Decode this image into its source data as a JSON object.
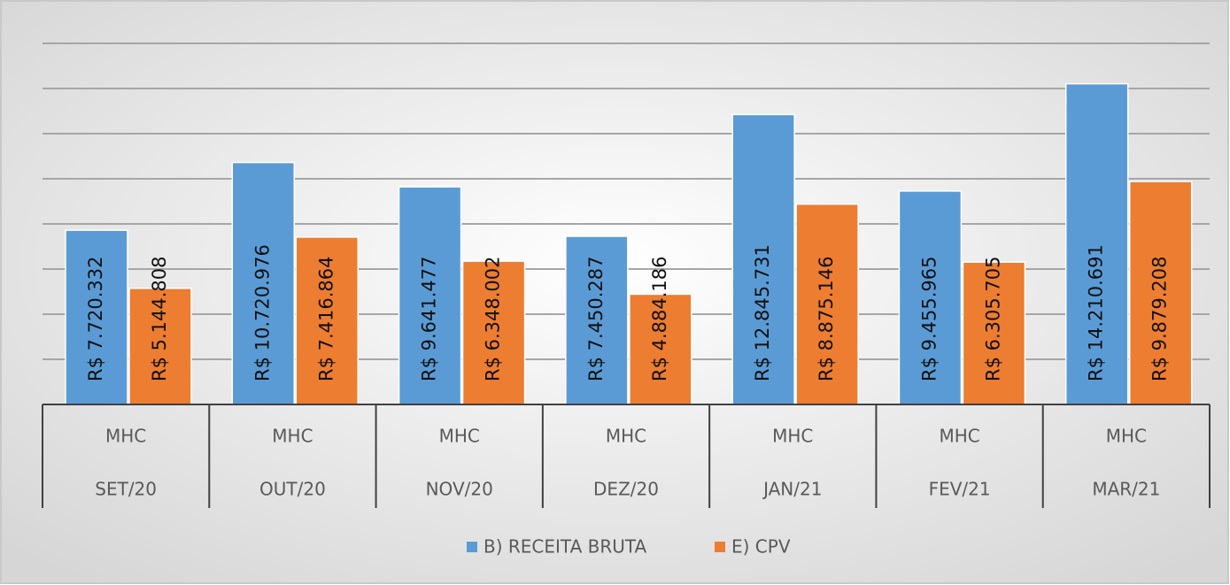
{
  "chart_data": {
    "type": "bar",
    "category_groups": [
      "MHC",
      "MHC",
      "MHC",
      "MHC",
      "MHC",
      "MHC",
      "MHC"
    ],
    "categories": [
      "SET/20",
      "OUT/20",
      "NOV/20",
      "DEZ/20",
      "JAN/21",
      "FEV/21",
      "MAR/21"
    ],
    "series": [
      {
        "name": "B) RECEITA BRUTA",
        "color": "#5b9bd5",
        "values": [
          7720332,
          10720976,
          9641477,
          7450287,
          12845731,
          9455965,
          14210691
        ],
        "value_labels": [
          "R$ 7.720.332",
          "R$ 10.720.976",
          "R$ 9.641.477",
          "R$ 7.450.287",
          "R$ 12.845.731",
          "R$ 9.455.965",
          "R$ 14.210.691"
        ]
      },
      {
        "name": "E) CPV",
        "color": "#ed7d31",
        "values": [
          5144808,
          7416864,
          6348002,
          4884186,
          8875146,
          6305705,
          9879208
        ],
        "value_labels": [
          "R$ 5.144.808",
          "R$ 7.416.864",
          "R$ 6.348.002",
          "R$ 4.884.186",
          "R$ 8.875.146",
          "R$ 6.305.705",
          "R$ 9.879.208"
        ]
      }
    ],
    "ylim": [
      0,
      16000000
    ],
    "yticks": [
      2000000,
      4000000,
      6000000,
      8000000,
      10000000,
      12000000,
      14000000,
      16000000
    ],
    "grid": true,
    "legend": "bottom"
  }
}
